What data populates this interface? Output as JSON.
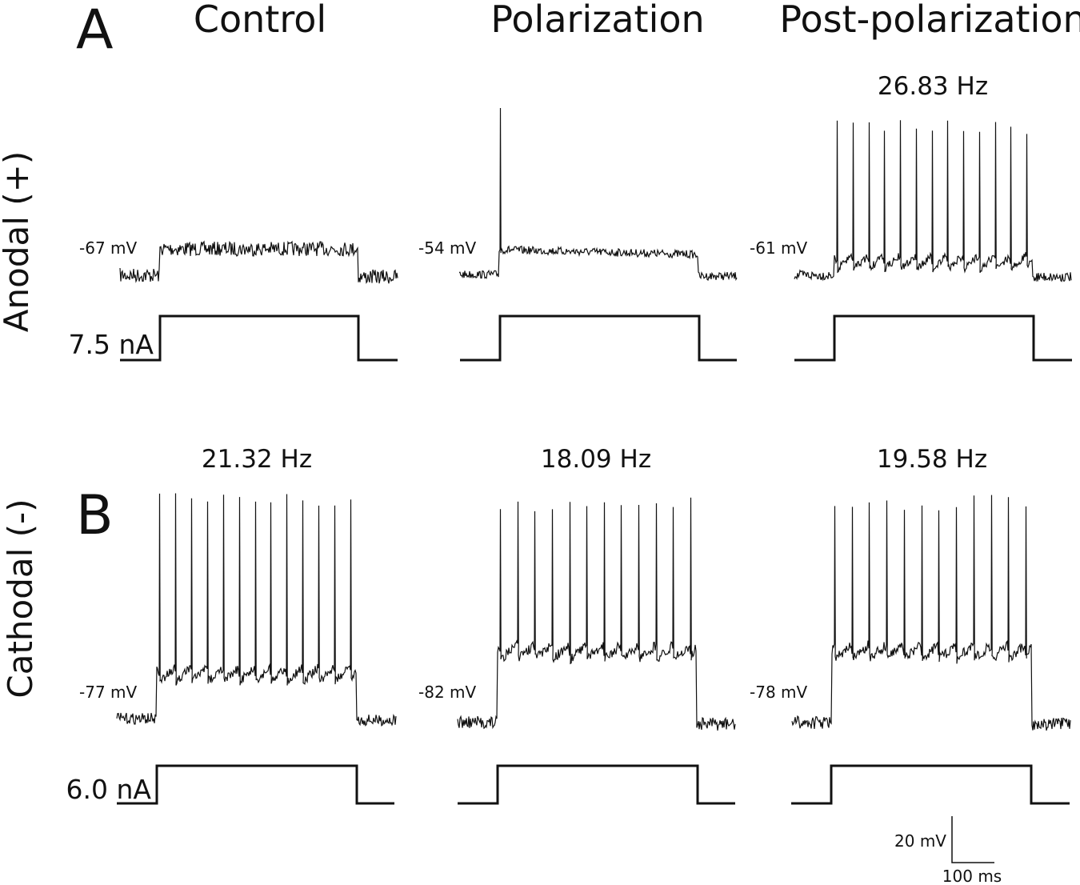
{
  "panels": [
    {
      "letter": "A",
      "row_label": "Anodal (+)",
      "current": "7.5 nA"
    },
    {
      "letter": "B",
      "row_label": "Cathodal (-)",
      "current": "6.0 nA"
    }
  ],
  "columns": [
    "Control",
    "Polarization",
    "Post-polarization"
  ],
  "traces": [
    {
      "row": 0,
      "col": 0,
      "rmp": "-67 mV",
      "rate": "",
      "spikes": 0
    },
    {
      "row": 0,
      "col": 1,
      "rmp": "-54 mV",
      "rate": "",
      "spikes": 1
    },
    {
      "row": 0,
      "col": 2,
      "rmp": "-61 mV",
      "rate": "26.83 Hz",
      "spikes": 13
    },
    {
      "row": 1,
      "col": 0,
      "rmp": "-77 mV",
      "rate": "21.32 Hz",
      "spikes": 13
    },
    {
      "row": 1,
      "col": 1,
      "rmp": "-82 mV",
      "rate": "18.09 Hz",
      "spikes": 12
    },
    {
      "row": 1,
      "col": 2,
      "rmp": "-78 mV",
      "rate": "19.58 Hz",
      "spikes": 12
    }
  ],
  "scale_bar": {
    "voltage": "20 mV",
    "time": "100 ms"
  }
}
